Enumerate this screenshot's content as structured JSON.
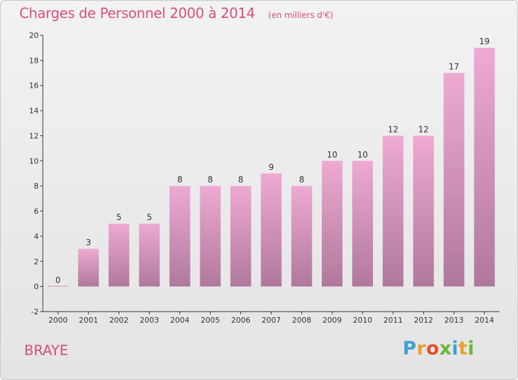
{
  "chart_data": {
    "type": "bar",
    "title": "Charges de Personnel 2000 à 2014",
    "subtitle": "(en milliers d'€)",
    "categories": [
      "2000",
      "2001",
      "2002",
      "2003",
      "2004",
      "2005",
      "2006",
      "2007",
      "2008",
      "2009",
      "2010",
      "2011",
      "2012",
      "2013",
      "2014"
    ],
    "values": [
      0,
      3,
      5,
      5,
      8,
      8,
      8,
      9,
      8,
      10,
      10,
      12,
      12,
      17,
      19
    ],
    "ylim": [
      -2,
      20
    ],
    "yticks": [
      -2,
      0,
      2,
      4,
      6,
      8,
      10,
      12,
      14,
      16,
      18,
      20
    ],
    "grid": false,
    "bar_color_top": "#eeaad2",
    "bar_color_bottom": "#b0789c"
  },
  "location_label": "BRAYE",
  "logo": {
    "text": "Proxiti",
    "letter_colors": [
      "#3fa0d8",
      "#e8a02a",
      "#e0502a",
      "#6ab43a",
      "#3fa0d8",
      "#e8a02a",
      "#6ab43a"
    ]
  },
  "colors": {
    "title": "#d8507a",
    "axis": "#333333"
  }
}
